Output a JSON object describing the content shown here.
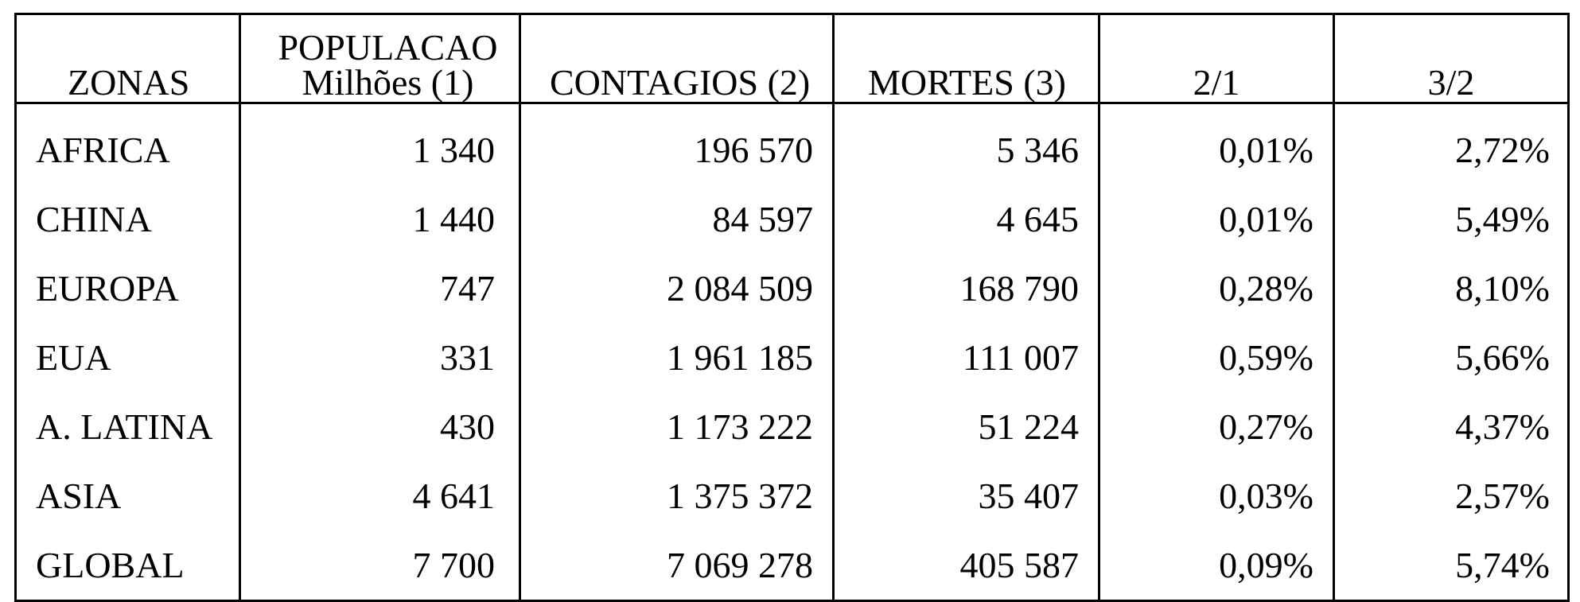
{
  "table": {
    "headers": {
      "zonas": "ZONAS",
      "populacao_line1": "POPULACAO",
      "populacao_line2": "Milhões (1)",
      "contagios": "CONTAGIOS (2)",
      "mortes": "MORTES (3)",
      "ratio_2_1": "2/1",
      "ratio_3_2": "3/2"
    },
    "rows": [
      {
        "zona": "AFRICA",
        "populacao": "1 340",
        "contagios": "196 570",
        "mortes": "5 346",
        "ratio_2_1": "0,01%",
        "ratio_3_2": "2,72%"
      },
      {
        "zona": "CHINA",
        "populacao": "1 440",
        "contagios": "84 597",
        "mortes": "4 645",
        "ratio_2_1": "0,01%",
        "ratio_3_2": "5,49%"
      },
      {
        "zona": "EUROPA",
        "populacao": "747",
        "contagios": "2 084 509",
        "mortes": "168 790",
        "ratio_2_1": "0,28%",
        "ratio_3_2": "8,10%"
      },
      {
        "zona": "EUA",
        "populacao": "331",
        "contagios": "1 961 185",
        "mortes": "111 007",
        "ratio_2_1": "0,59%",
        "ratio_3_2": "5,66%"
      },
      {
        "zona": "A. LATINA",
        "populacao": "430",
        "contagios": "1 173 222",
        "mortes": "51 224",
        "ratio_2_1": "0,27%",
        "ratio_3_2": "4,37%"
      },
      {
        "zona": "ASIA",
        "populacao": "4 641",
        "contagios": "1 375 372",
        "mortes": "35 407",
        "ratio_2_1": "0,03%",
        "ratio_3_2": "2,57%"
      },
      {
        "zona": "GLOBAL",
        "populacao": "7 700",
        "contagios": "7 069 278",
        "mortes": "405 587",
        "ratio_2_1": "0,09%",
        "ratio_3_2": "5,74%"
      }
    ]
  }
}
